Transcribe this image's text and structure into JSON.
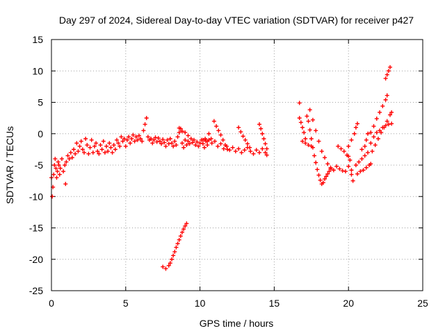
{
  "chart_data": {
    "type": "scatter",
    "title": "Day 297 of 2024, Sidereal Day-to-day VTEC variation (SDTVAR) for receiver p427",
    "xlabel": "GPS time / hours",
    "ylabel": "SDTVAR / TECUs",
    "xlim": [
      0,
      25
    ],
    "ylim": [
      -25,
      15
    ],
    "xticks": [
      "0",
      "5",
      "10",
      "15",
      "20",
      "25"
    ],
    "yticks": [
      "15",
      "10",
      "5",
      "0",
      "-5",
      "-10",
      "-15",
      "-20",
      "-25"
    ],
    "grid": true,
    "marker": "+",
    "color": "#ff0000",
    "series": [
      {
        "points": [
          [
            0.0,
            -7.0
          ],
          [
            0.05,
            -10.0
          ],
          [
            0.1,
            -8.5
          ],
          [
            0.15,
            -6.5
          ],
          [
            0.2,
            -5.0
          ],
          [
            0.25,
            -4.0
          ],
          [
            0.3,
            -5.5
          ],
          [
            0.35,
            -7.0
          ],
          [
            0.4,
            -6.0
          ],
          [
            0.45,
            -4.5
          ],
          [
            0.5,
            -5.0
          ],
          [
            0.55,
            -6.5
          ],
          [
            0.6,
            -5.5
          ],
          [
            0.7,
            -4.0
          ],
          [
            0.8,
            -6.0
          ],
          [
            0.9,
            -5.0
          ],
          [
            1.0,
            -4.5
          ],
          [
            1.1,
            -3.5
          ],
          [
            0.95,
            -8.0
          ],
          [
            1.2,
            -4.0
          ],
          [
            1.3,
            -3.0
          ],
          [
            1.4,
            -3.8
          ],
          [
            1.5,
            -2.5
          ],
          [
            1.6,
            -3.2
          ],
          [
            1.7,
            -1.5
          ],
          [
            1.8,
            -2.8
          ],
          [
            1.9,
            -2.0
          ],
          [
            2.0,
            -1.2
          ],
          [
            2.1,
            -2.5
          ],
          [
            2.2,
            -3.0
          ],
          [
            2.3,
            -0.8
          ],
          [
            2.4,
            -1.8
          ],
          [
            2.5,
            -3.2
          ],
          [
            2.6,
            -2.2
          ],
          [
            2.7,
            -1.0
          ],
          [
            2.8,
            -3.0
          ],
          [
            2.9,
            -2.0
          ],
          [
            3.0,
            -1.5
          ],
          [
            3.1,
            -2.8
          ],
          [
            3.2,
            -3.2
          ],
          [
            3.3,
            -1.8
          ],
          [
            3.4,
            -2.5
          ],
          [
            3.5,
            -1.2
          ],
          [
            3.6,
            -3.0
          ],
          [
            3.7,
            -2.0
          ],
          [
            3.8,
            -2.8
          ],
          [
            3.9,
            -1.5
          ],
          [
            4.0,
            -2.2
          ],
          [
            4.1,
            -3.0
          ],
          [
            4.2,
            -1.8
          ],
          [
            4.3,
            -2.5
          ],
          [
            4.4,
            -1.0
          ],
          [
            4.5,
            -1.5
          ],
          [
            4.6,
            -2.0
          ],
          [
            4.7,
            -0.5
          ],
          [
            4.8,
            -1.2
          ],
          [
            4.9,
            -0.8
          ],
          [
            5.0,
            -2.0
          ],
          [
            5.1,
            -1.0
          ],
          [
            5.2,
            -0.5
          ],
          [
            5.3,
            -1.5
          ],
          [
            5.4,
            -0.8
          ],
          [
            5.5,
            -0.2
          ],
          [
            5.6,
            -1.2
          ],
          [
            5.7,
            -0.5
          ],
          [
            5.8,
            -1.0
          ],
          [
            5.9,
            -0.3
          ],
          [
            6.0,
            -0.8
          ],
          [
            6.1,
            -1.2
          ],
          [
            6.2,
            0.5
          ],
          [
            6.3,
            1.5
          ],
          [
            6.4,
            2.5
          ],
          [
            6.5,
            -0.5
          ],
          [
            6.6,
            -1.0
          ],
          [
            6.7,
            -0.8
          ],
          [
            6.8,
            -1.5
          ],
          [
            6.9,
            -1.0
          ],
          [
            7.0,
            -0.6
          ],
          [
            7.1,
            -1.3
          ],
          [
            7.2,
            -0.7
          ],
          [
            7.3,
            -1.2
          ],
          [
            7.4,
            -1.6
          ],
          [
            7.5,
            -0.9
          ],
          [
            7.6,
            -1.4
          ],
          [
            7.7,
            -2.0
          ],
          [
            7.8,
            -1.0
          ],
          [
            7.9,
            -1.6
          ],
          [
            8.0,
            -0.8
          ],
          [
            8.1,
            -1.5
          ],
          [
            8.2,
            -2.0
          ],
          [
            8.3,
            -1.2
          ],
          [
            8.4,
            -1.8
          ],
          [
            8.5,
            -0.5
          ],
          [
            8.6,
            0.2
          ],
          [
            8.7,
            0.8
          ],
          [
            8.8,
            -1.5
          ],
          [
            8.9,
            -2.2
          ],
          [
            9.0,
            -1.0
          ],
          [
            9.1,
            -1.8
          ],
          [
            9.2,
            -1.2
          ],
          [
            9.3,
            -1.6
          ],
          [
            9.4,
            -0.8
          ],
          [
            9.5,
            -1.4
          ],
          [
            9.6,
            -1.0
          ],
          [
            9.7,
            -1.8
          ],
          [
            9.8,
            -1.3
          ],
          [
            9.9,
            -2.0
          ],
          [
            10.0,
            -1.5
          ],
          [
            10.1,
            -1.0
          ],
          [
            10.2,
            -1.6
          ],
          [
            10.3,
            -2.2
          ],
          [
            10.4,
            -1.2
          ],
          [
            10.5,
            -1.8
          ],
          [
            10.6,
            -1.0
          ],
          [
            10.8,
            -1.5
          ],
          [
            11.0,
            -1.2
          ],
          [
            11.2,
            -2.0
          ],
          [
            11.4,
            -1.6
          ],
          [
            11.6,
            -2.4
          ],
          [
            11.8,
            -2.0
          ],
          [
            12.0,
            -2.6
          ],
          [
            12.2,
            -2.2
          ],
          [
            12.4,
            -2.8
          ],
          [
            12.6,
            -2.4
          ],
          [
            12.8,
            -3.0
          ],
          [
            13.0,
            -2.6
          ],
          [
            13.2,
            -2.2
          ],
          [
            13.4,
            -2.8
          ],
          [
            13.6,
            -3.2
          ],
          [
            13.8,
            -2.6
          ],
          [
            14.0,
            -3.0
          ],
          [
            14.2,
            -2.4
          ],
          [
            14.4,
            -3.0
          ],
          [
            14.5,
            -3.4
          ],
          [
            10.2,
            -1.0
          ],
          [
            10.35,
            -0.8
          ],
          [
            10.5,
            -1.2
          ],
          [
            10.6,
            0.0
          ],
          [
            10.75,
            -0.8
          ],
          [
            10.95,
            2.0
          ],
          [
            11.1,
            1.2
          ],
          [
            11.25,
            0.5
          ],
          [
            11.4,
            -0.2
          ],
          [
            11.55,
            -1.0
          ],
          [
            11.7,
            -1.8
          ],
          [
            11.85,
            -2.5
          ],
          [
            12.6,
            1.0
          ],
          [
            12.75,
            0.3
          ],
          [
            12.9,
            -0.4
          ],
          [
            13.05,
            -1.0
          ],
          [
            13.2,
            -1.6
          ],
          [
            13.35,
            -2.2
          ],
          [
            14.0,
            1.5
          ],
          [
            14.1,
            0.8
          ],
          [
            14.2,
            0.0
          ],
          [
            14.3,
            -0.8
          ],
          [
            14.4,
            -1.6
          ],
          [
            14.5,
            -2.4
          ],
          [
            8.6,
            0.9
          ],
          [
            8.8,
            0.4
          ],
          [
            9.0,
            0.2
          ],
          [
            9.2,
            -0.3
          ],
          [
            7.5,
            -21.2
          ],
          [
            7.7,
            -21.5
          ],
          [
            7.9,
            -21.0
          ],
          [
            8.0,
            -20.6
          ],
          [
            8.1,
            -20.0
          ],
          [
            8.2,
            -19.4
          ],
          [
            8.3,
            -18.8
          ],
          [
            8.4,
            -18.1
          ],
          [
            8.5,
            -17.5
          ],
          [
            8.6,
            -16.9
          ],
          [
            8.7,
            -16.3
          ],
          [
            8.8,
            -15.7
          ],
          [
            8.9,
            -15.2
          ],
          [
            9.0,
            -14.7
          ],
          [
            9.1,
            -14.3
          ],
          [
            16.7,
            4.9
          ],
          [
            16.7,
            2.5
          ],
          [
            16.8,
            1.8
          ],
          [
            16.9,
            1.0
          ],
          [
            17.0,
            0.2
          ],
          [
            17.1,
            -0.8
          ],
          [
            17.2,
            2.8
          ],
          [
            17.3,
            2.0
          ],
          [
            17.4,
            0.6
          ],
          [
            17.5,
            -0.8
          ],
          [
            17.6,
            -2.2
          ],
          [
            17.7,
            -3.5
          ],
          [
            17.8,
            -4.6
          ],
          [
            17.9,
            -5.7
          ],
          [
            18.0,
            -6.6
          ],
          [
            18.1,
            -7.4
          ],
          [
            18.2,
            -8.0
          ],
          [
            18.3,
            -7.8
          ],
          [
            18.4,
            -7.2
          ],
          [
            18.5,
            -6.8
          ],
          [
            18.6,
            -6.4
          ],
          [
            18.7,
            -6.0
          ],
          [
            18.8,
            -5.6
          ],
          [
            17.4,
            3.8
          ],
          [
            17.6,
            2.2
          ],
          [
            17.8,
            0.5
          ],
          [
            18.0,
            -1.2
          ],
          [
            18.2,
            -2.8
          ],
          [
            18.4,
            -3.8
          ],
          [
            18.6,
            -4.8
          ],
          [
            18.8,
            -5.4
          ],
          [
            19.0,
            -5.8
          ],
          [
            19.2,
            -5.2
          ],
          [
            19.4,
            -5.6
          ],
          [
            19.6,
            -5.9
          ],
          [
            19.8,
            -6.0
          ],
          [
            20.0,
            -5.2
          ],
          [
            20.2,
            -5.8
          ],
          [
            16.9,
            -1.2
          ],
          [
            17.1,
            -1.5
          ],
          [
            17.3,
            -1.8
          ],
          [
            17.5,
            -2.0
          ],
          [
            19.3,
            -2.0
          ],
          [
            19.5,
            -2.4
          ],
          [
            19.7,
            -2.8
          ],
          [
            19.9,
            -3.4
          ],
          [
            20.0,
            -3.6
          ],
          [
            20.1,
            -4.2
          ],
          [
            20.2,
            -6.5
          ],
          [
            20.3,
            -7.5
          ],
          [
            20.0,
            -2.0
          ],
          [
            20.2,
            -1.0
          ],
          [
            20.4,
            0.0
          ],
          [
            20.5,
            1.0
          ],
          [
            20.6,
            1.6
          ],
          [
            20.5,
            -5.0
          ],
          [
            20.7,
            -4.5
          ],
          [
            20.9,
            -4.0
          ],
          [
            21.1,
            -3.5
          ],
          [
            21.3,
            -3.0
          ],
          [
            20.6,
            -6.4
          ],
          [
            20.8,
            -6.0
          ],
          [
            21.0,
            -5.8
          ],
          [
            21.2,
            -5.4
          ],
          [
            21.4,
            -5.0
          ],
          [
            21.5,
            -4.8
          ],
          [
            20.9,
            -2.5
          ],
          [
            21.1,
            -2.0
          ],
          [
            21.2,
            -1.0
          ],
          [
            21.3,
            0.0
          ],
          [
            21.5,
            -1.5
          ],
          [
            21.7,
            -0.5
          ],
          [
            21.9,
            0.2
          ],
          [
            22.1,
            0.5
          ],
          [
            22.3,
            1.0
          ],
          [
            22.5,
            1.3
          ],
          [
            22.7,
            1.5
          ],
          [
            22.9,
            1.6
          ],
          [
            21.5,
            0.2
          ],
          [
            21.7,
            1.2
          ],
          [
            21.9,
            2.4
          ],
          [
            22.1,
            3.4
          ],
          [
            22.3,
            4.4
          ],
          [
            22.5,
            5.4
          ],
          [
            22.6,
            6.1
          ],
          [
            21.6,
            -2.8
          ],
          [
            21.8,
            -1.8
          ],
          [
            22.0,
            -0.8
          ],
          [
            22.2,
            0.2
          ],
          [
            22.4,
            1.0
          ],
          [
            22.6,
            2.0
          ],
          [
            22.8,
            3.0
          ],
          [
            22.9,
            3.4
          ],
          [
            22.5,
            8.8
          ],
          [
            22.6,
            9.4
          ],
          [
            22.7,
            10.0
          ],
          [
            22.8,
            10.6
          ]
        ]
      }
    ]
  }
}
